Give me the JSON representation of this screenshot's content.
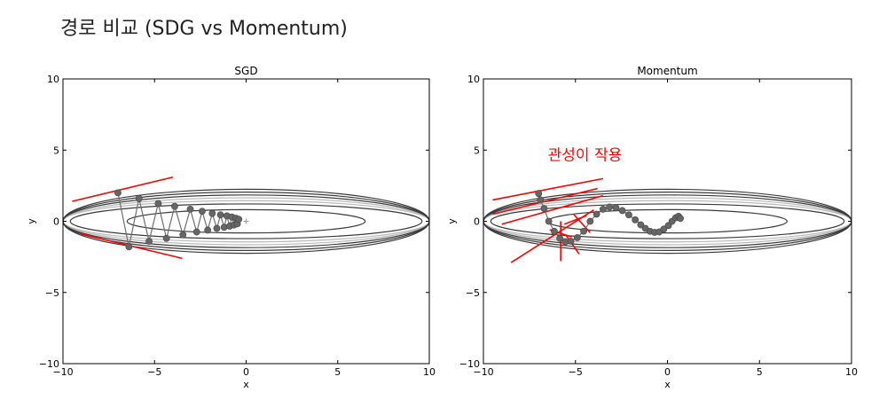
{
  "page": {
    "title": "경로 비교 (SDG vs Momentum)"
  },
  "colors": {
    "contour_dark": "#3a3a3a",
    "contour_light": "#b8b8b8",
    "path": "#6e6e6e",
    "marker": "#666666",
    "annotation": "#ff0000"
  },
  "chart_data": [
    {
      "type": "line",
      "title": "SGD",
      "xlabel": "x",
      "ylabel": "y",
      "xlim": [
        -10,
        10
      ],
      "ylim": [
        -10,
        10
      ],
      "xticks": [
        "−10",
        "−5",
        "0",
        "5",
        "10"
      ],
      "yticks": [
        "10",
        "5",
        "0",
        "−5",
        "−10"
      ],
      "grid": false,
      "contour": {
        "center": [
          0,
          0
        ],
        "ellipses": [
          [
            6.5,
            0.82
          ],
          [
            9.6,
            1.22
          ],
          [
            10,
            1.45
          ],
          [
            10,
            1.65
          ],
          [
            10,
            1.85
          ],
          [
            10,
            2.05
          ],
          [
            10,
            2.25
          ]
        ]
      },
      "minimum_marker": [
        0,
        0
      ],
      "series": [
        {
          "x": [
            -7.0,
            -6.4,
            -5.85,
            -5.3,
            -4.8,
            -4.35,
            -3.9,
            -3.45,
            -3.05,
            -2.7,
            -2.4,
            -2.1,
            -1.85,
            -1.6,
            -1.4,
            -1.2,
            -1.05,
            -0.9,
            -0.78,
            -0.66,
            -0.56,
            -0.48,
            -0.4
          ],
          "y": [
            2.0,
            -1.8,
            1.6,
            -1.4,
            1.25,
            -1.2,
            1.05,
            -0.95,
            0.85,
            -0.75,
            0.7,
            -0.62,
            0.55,
            -0.5,
            0.45,
            -0.42,
            0.38,
            -0.34,
            0.3,
            -0.26,
            0.22,
            -0.18,
            0.14
          ]
        }
      ],
      "annotations": {
        "gradient_lines": [
          {
            "from": [
              -9.5,
              1.4
            ],
            "to": [
              -4.0,
              3.1
            ]
          },
          {
            "from": [
              -9.0,
              -0.9
            ],
            "to": [
              -3.5,
              -2.6
            ]
          }
        ]
      }
    },
    {
      "type": "line",
      "title": "Momentum",
      "xlabel": "x",
      "ylabel": "y",
      "xlim": [
        -10,
        10
      ],
      "ylim": [
        -10,
        10
      ],
      "xticks": [
        "−10",
        "−5",
        "0",
        "5",
        "10"
      ],
      "yticks": [
        "10",
        "5",
        "0",
        "−5",
        "−10"
      ],
      "grid": false,
      "contour": {
        "center": [
          0,
          0
        ],
        "ellipses": [
          [
            6.5,
            0.82
          ],
          [
            9.6,
            1.22
          ],
          [
            10,
            1.45
          ],
          [
            10,
            1.65
          ],
          [
            10,
            1.85
          ],
          [
            10,
            2.05
          ],
          [
            10,
            2.25
          ]
        ]
      },
      "series": [
        {
          "x": [
            -7.0,
            -6.9,
            -6.7,
            -6.45,
            -6.15,
            -5.85,
            -5.55,
            -5.25,
            -4.9,
            -4.55,
            -4.2,
            -3.85,
            -3.5,
            -3.15,
            -2.8,
            -2.45,
            -2.1,
            -1.75,
            -1.45,
            -1.2,
            -0.95,
            -0.7,
            -0.45,
            -0.2,
            0.05,
            0.25,
            0.45,
            0.6,
            0.7
          ],
          "y": [
            1.95,
            1.5,
            0.9,
            0.0,
            -0.7,
            -1.2,
            -1.45,
            -1.4,
            -1.15,
            -0.7,
            0.0,
            0.5,
            0.85,
            1.0,
            0.95,
            0.75,
            0.45,
            0.1,
            -0.25,
            -0.5,
            -0.7,
            -0.78,
            -0.75,
            -0.55,
            -0.3,
            0.0,
            0.25,
            0.35,
            0.2
          ]
        }
      ],
      "annotations": {
        "text": "관성이 작용",
        "text_pos": [
          -6.5,
          4.3
        ],
        "gradient_lines": [
          {
            "from": [
              -9.5,
              1.5
            ],
            "to": [
              -3.5,
              3.0
            ]
          },
          {
            "from": [
              -9.5,
              0.5
            ],
            "to": [
              -3.8,
              2.3
            ]
          },
          {
            "from": [
              -9.0,
              -0.2
            ],
            "to": [
              -3.5,
              1.8
            ]
          },
          {
            "from": [
              -8.5,
              -2.9
            ],
            "to": [
              -4.0,
              0.8
            ]
          },
          {
            "from": [
              -5.8,
              -2.8
            ],
            "to": [
              -5.8,
              0.0
            ]
          },
          {
            "from": [
              -6.4,
              -0.6
            ],
            "to": [
              -5.2,
              -1.1
            ]
          },
          {
            "from": [
              -5.5,
              -1.0
            ],
            "to": [
              -4.8,
              -2.3
            ]
          },
          {
            "from": [
              -5.1,
              0.5
            ],
            "to": [
              -4.2,
              -0.8
            ]
          },
          {
            "from": [
              -5.6,
              -0.2
            ],
            "to": [
              -4.4,
              0.4
            ]
          }
        ]
      }
    }
  ]
}
